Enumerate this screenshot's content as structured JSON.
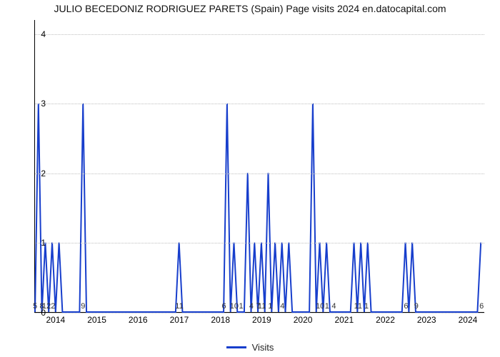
{
  "chart": {
    "type": "line",
    "title": "JULIO BECEDONIZ RODRIGUEZ PARETS (Spain) Page visits 2024 en.datocapital.com",
    "title_fontsize": 14,
    "title_color": "#111111",
    "background_color": "#ffffff",
    "line_color": "#173ecc",
    "line_width": 2,
    "grid_color": "#bfbfbf",
    "xlim": [
      0,
      131
    ],
    "ylim": [
      0,
      4.2
    ],
    "yticks": [
      0,
      1,
      2,
      3,
      4
    ],
    "ytick_fontsize": 12,
    "xtick_fontsize": 12,
    "annot_fontsize": 11,
    "xticks": [
      {
        "pos": 6,
        "label": "2014"
      },
      {
        "pos": 18,
        "label": "2015"
      },
      {
        "pos": 30,
        "label": "2016"
      },
      {
        "pos": 42,
        "label": "2017"
      },
      {
        "pos": 54,
        "label": "2018"
      },
      {
        "pos": 66,
        "label": "2019"
      },
      {
        "pos": 78,
        "label": "2020"
      },
      {
        "pos": 90,
        "label": "2021"
      },
      {
        "pos": 102,
        "label": "2022"
      },
      {
        "pos": 114,
        "label": "2023"
      },
      {
        "pos": 126,
        "label": "2024"
      }
    ],
    "values": [
      0,
      3,
      0,
      1,
      0,
      1,
      0,
      1,
      0,
      0,
      0,
      0,
      0,
      0,
      3,
      0,
      0,
      0,
      0,
      0,
      0,
      0,
      0,
      0,
      0,
      0,
      0,
      0,
      0,
      0,
      0,
      0,
      0,
      0,
      0,
      0,
      0,
      0,
      0,
      0,
      0,
      0,
      1,
      0,
      0,
      0,
      0,
      0,
      0,
      0,
      0,
      0,
      0,
      0,
      0,
      0,
      3,
      0,
      1,
      0,
      0,
      0,
      2,
      0,
      1,
      0,
      1,
      0,
      2,
      0,
      1,
      0,
      1,
      0,
      1,
      0,
      0,
      0,
      0,
      0,
      0,
      3,
      0,
      1,
      0,
      1,
      0,
      0,
      0,
      0,
      0,
      0,
      0,
      1,
      0,
      1,
      0,
      1,
      0,
      0,
      0,
      0,
      0,
      0,
      0,
      0,
      0,
      0,
      1,
      0,
      1,
      0,
      0,
      0,
      0,
      0,
      0,
      0,
      0,
      0,
      0,
      0,
      0,
      0,
      0,
      0,
      0,
      0,
      0,
      0,
      1
    ],
    "annotations": [
      {
        "x": 0,
        "text": "5"
      },
      {
        "x": 2,
        "text": "8"
      },
      {
        "x": 4,
        "text": "122"
      },
      {
        "x": 14,
        "text": "9"
      },
      {
        "x": 42,
        "text": "11"
      },
      {
        "x": 55,
        "text": "6"
      },
      {
        "x": 58,
        "text": "10"
      },
      {
        "x": 60,
        "text": "1"
      },
      {
        "x": 63,
        "text": "4"
      },
      {
        "x": 65,
        "text": "7"
      },
      {
        "x": 67,
        "text": "11 1"
      },
      {
        "x": 72,
        "text": "4"
      },
      {
        "x": 83,
        "text": "10"
      },
      {
        "x": 85,
        "text": "1"
      },
      {
        "x": 87,
        "text": "4"
      },
      {
        "x": 95,
        "text": "11 1"
      },
      {
        "x": 108,
        "text": "6"
      },
      {
        "x": 111,
        "text": "9"
      },
      {
        "x": 130,
        "text": "6"
      }
    ],
    "legend": {
      "label": "Visits",
      "color": "#173ecc"
    }
  }
}
